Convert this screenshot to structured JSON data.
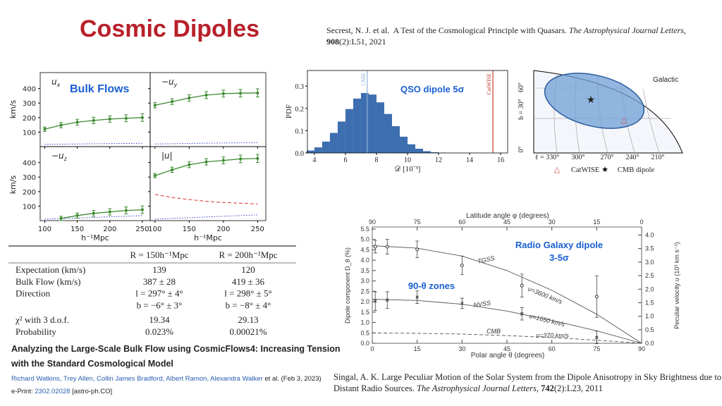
{
  "title": "Cosmic Dipoles",
  "secrest_reference": {
    "lines": [
      [
        {
          "text": "Secrest, N. J. et al.  A Test of the Cosmological Principle with Quasars. "
        },
        {
          "text": "The Astrophysical Journal Letters",
          "style": "italic"
        },
        {
          "text": ","
        }
      ],
      [
        {
          "text": "908",
          "style": "bold"
        },
        {
          "text": "(2):L51, 2021"
        }
      ]
    ]
  },
  "singal_reference": {
    "lines": [
      [
        {
          "text": "Singal, A. K. Large Peculiar Motion of the Solar System from the Dipole Anisotropy in Sky Brightness due to"
        }
      ],
      [
        {
          "text": "Distant Radio Sources. "
        },
        {
          "text": "The Astrophysical Journal Letters",
          "style": "italic"
        },
        {
          "text": ", "
        },
        {
          "text": "742",
          "style": "bold"
        },
        {
          "text": "(2):L23, 2011"
        }
      ]
    ]
  },
  "bulk_table": {
    "columns": [
      "R = 150h⁻¹Mpc",
      "R = 200h⁻¹Mpc"
    ],
    "rows": [
      {
        "label": "Expectation (km/s)",
        "cells": [
          "139",
          "120"
        ]
      },
      {
        "label": "Bulk Flow (km/s)",
        "cells": [
          "387 ± 28",
          "419 ± 36"
        ]
      },
      {
        "label": "Direction",
        "cells": [
          "l = 297° ± 4°",
          "l = 298° ± 5°"
        ]
      },
      {
        "cells": [
          "b = −6° ± 3°",
          "b = −8° ± 4°"
        ]
      },
      {
        "label": "χ² with 3 d.o.f.",
        "cells": [
          "19.34",
          "29.13"
        ]
      },
      {
        "label": "Probability",
        "cells": [
          "0.023%",
          "0.00021%"
        ]
      }
    ]
  },
  "paper": {
    "title_lines": [
      "Analyzing the Large-Scale Bulk Flow using CosmicFlows4: Increasing Tension",
      "with the Standard Cosmological Model"
    ],
    "authors": "Richard Watkins, Trey Allen, Collin James Bradford, Albert Ramon, Alexandra Walker",
    "authors_suffix": " et al. (Feb 3, 2023)",
    "eprint_label": "e-Print: ",
    "eprint_id": "2302.02028",
    "eprint_class": " [astro-ph.CO]"
  },
  "sky_map": {
    "frame": "Galactic",
    "b_labels": [
      "60°",
      "b = 30°",
      "0°"
    ],
    "l_labels": [
      "ℓ = 330°",
      "300°",
      "270°",
      "240°",
      "210°"
    ],
    "legend": [
      {
        "symbol": "△",
        "label": "CatWISE",
        "color": "#d9534f"
      },
      {
        "symbol": "★",
        "label": "CMB dipole",
        "color": "#000000"
      }
    ]
  },
  "chart_data": [
    {
      "type": "line",
      "annotation": "Bulk Flows",
      "ylabel": "km/s",
      "xlabel": "h⁻¹Mpc",
      "x": [
        100,
        125,
        150,
        175,
        200,
        225,
        250
      ],
      "xlim": [
        93,
        262
      ],
      "ylim": [
        0,
        510
      ],
      "xticks": [
        100,
        150,
        200,
        250
      ],
      "yticks": [
        100,
        200,
        300,
        400
      ],
      "panels": [
        {
          "label": "u",
          "sub": "x",
          "flow": {
            "color": "#3a8a2e",
            "values": [
              120,
              148,
              168,
              180,
              190,
              195,
              200
            ],
            "errors": [
              15,
              18,
              20,
              22,
              22,
              24,
              26
            ]
          },
          "lines": [
            {
              "color": "#3344cc",
              "style": "dotted",
              "values": [
                15,
                17,
                18,
                20,
                21,
                22,
                23
              ]
            }
          ]
        },
        {
          "label": "−u",
          "sub": "y",
          "flow": {
            "color": "#3a8a2e",
            "values": [
              285,
              310,
              335,
              355,
              365,
              368,
              370
            ],
            "errors": [
              18,
              20,
              22,
              24,
              24,
              26,
              28
            ]
          },
          "lines": [
            {
              "color": "#3344cc",
              "style": "dotted",
              "values": [
                18,
                20,
                22,
                24,
                25,
                26,
                28
              ]
            }
          ]
        },
        {
          "label": "−u",
          "sub": "z",
          "flow": {
            "color": "#3a8a2e",
            "values": [
              null,
              15,
              35,
              50,
              60,
              70,
              75
            ],
            "errors": [
              null,
              15,
              18,
              20,
              22,
              24,
              26
            ]
          },
          "lines": [
            {
              "color": "#3344cc",
              "style": "dotted",
              "values": [
                10,
                14,
                18,
                22,
                26,
                30,
                35
              ]
            }
          ]
        },
        {
          "label": "|u|",
          "flow": {
            "color": "#3a8a2e",
            "values": [
              310,
              350,
              385,
              405,
              415,
              425,
              428
            ],
            "errors": [
              15,
              18,
              20,
              22,
              24,
              26,
              28
            ]
          },
          "lines": [
            {
              "color": "#d9362b",
              "style": "dashed",
              "values": [
                180,
                160,
                145,
                133,
                125,
                120,
                115
              ]
            },
            {
              "color": "#3344cc",
              "style": "dotted",
              "values": [
                10,
                15,
                20,
                25,
                30,
                35,
                40
              ]
            }
          ]
        }
      ]
    },
    {
      "type": "histogram",
      "annotation": "QSO dipole 5σ",
      "xlabel": "𝒟 [10⁻³]",
      "ylabel": "PDF",
      "color": "#3d6eb0",
      "bins": [
        3.5,
        4,
        4.5,
        5,
        5.5,
        6,
        6.5,
        7,
        7.5,
        8,
        8.5,
        9,
        9.5,
        10,
        10.5,
        11,
        11.5,
        12,
        12.5
      ],
      "counts": [
        0.011,
        0.025,
        0.051,
        0.09,
        0.141,
        0.197,
        0.244,
        0.269,
        0.262,
        0.227,
        0.175,
        0.12,
        0.073,
        0.039,
        0.019,
        0.008,
        0.003,
        0.001
      ],
      "xlim": [
        3.55,
        16.45
      ],
      "ylim": [
        0,
        0.37
      ],
      "xticks": [
        4,
        6,
        8,
        10,
        12,
        14,
        16
      ],
      "yticks": [
        {
          "value": 0,
          "label": "0.0"
        },
        0.1,
        0.2,
        0.3
      ],
      "vlines": [
        {
          "label": "CMB",
          "value": 7.4,
          "color": "#8fb3d9"
        },
        {
          "label": "CatWISE",
          "value": 15.5,
          "color": "#c0392b"
        }
      ]
    },
    {
      "type": "line",
      "annotations": [
        "Radio Galaxy dipole",
        "3-5σ",
        "90-θ zones"
      ],
      "xlabel": "Polar angle θ (degrees)",
      "x2label": "Latitude angle φ (degrees)",
      "ylabel": "Dipole component D_θ (%)",
      "y2label": "Peculiar velocity υ (10³ km s⁻¹)",
      "xlim": [
        0,
        90
      ],
      "xticks": [
        0,
        15,
        30,
        45,
        60,
        75,
        90
      ],
      "x2lim": [
        90,
        0
      ],
      "x2ticks": [
        90,
        75,
        60,
        45,
        30,
        15,
        0
      ],
      "ylim": [
        0,
        5.6
      ],
      "yticks": [
        {
          "value": 0,
          "label": "0.0"
        },
        0.5,
        {
          "value": 1,
          "label": "1.0"
        },
        1.5,
        {
          "value": 2,
          "label": "2.0"
        },
        2.5,
        {
          "value": 3,
          "label": "3.0"
        },
        3.5,
        {
          "value": 4,
          "label": "4.0"
        },
        4.5,
        {
          "value": 5,
          "label": "5.0"
        },
        5.5
      ],
      "y2lim": [
        0,
        4.3
      ],
      "y2ticks": [
        {
          "value": 0,
          "label": "0.0"
        },
        0.5,
        {
          "value": 1,
          "label": "1.0"
        },
        1.5,
        {
          "value": 2,
          "label": "2.0"
        },
        2.5,
        {
          "value": 3,
          "label": "3.0"
        },
        3.5,
        {
          "value": 4,
          "label": "4.0"
        }
      ],
      "x": [
        0,
        15,
        30,
        45,
        60,
        75,
        90
      ],
      "series": [
        {
          "name": "TGSS",
          "values": [
            4.7,
            4.58,
            4.2,
            3.5,
            2.55,
            1.4,
            0
          ]
        },
        {
          "name": "NVSS",
          "values": [
            2.12,
            2.06,
            1.88,
            1.55,
            1.1,
            0.6,
            0
          ]
        },
        {
          "name": "CMB",
          "style": "dashed",
          "values": [
            0.5,
            0.48,
            0.44,
            0.37,
            0.27,
            0.15,
            0
          ]
        }
      ],
      "velocity_labels": [
        "υ=3600 km/s",
        "υ=1650 km/s",
        "υ=370 km/s"
      ],
      "points": [
        {
          "marker": "circle",
          "x": [
            1,
            5,
            15,
            30,
            50,
            75
          ],
          "values": [
            4.65,
            4.65,
            4.52,
            3.75,
            2.78,
            2.25
          ],
          "errors": [
            0.3,
            0.35,
            0.4,
            0.45,
            0.55,
            1.0
          ]
        },
        {
          "marker": "cross",
          "x": [
            1,
            5,
            15,
            30,
            50,
            75
          ],
          "values": [
            2.03,
            2.08,
            2.22,
            1.92,
            1.42,
            0.28
          ],
          "errors": [
            0.45,
            0.4,
            0.3,
            0.25,
            0.3,
            0.3
          ]
        }
      ]
    }
  ]
}
